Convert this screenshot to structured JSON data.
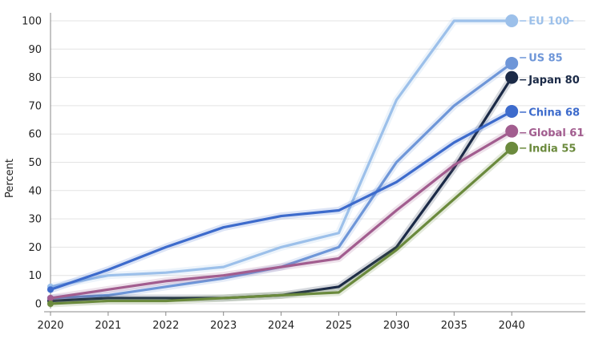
{
  "chart_data": {
    "type": "line",
    "ylabel": "Percent",
    "xlabel": "",
    "title": "",
    "categories": [
      "2020",
      "2021",
      "2022",
      "2023",
      "2024",
      "2025",
      "2030",
      "2035",
      "2040"
    ],
    "yticks": [
      "0",
      "10",
      "20",
      "30",
      "40",
      "50",
      "60",
      "70",
      "80",
      "90",
      "100"
    ],
    "ylim": [
      0,
      100
    ],
    "grid": "horizontal",
    "legend": "end-of-line labels",
    "series": [
      {
        "name": "EU",
        "end_label": "EU 100",
        "color": "#9cc0ea",
        "values": [
          6,
          10,
          11,
          13,
          20,
          25,
          72,
          100,
          100
        ]
      },
      {
        "name": "US",
        "end_label": "US 85",
        "color": "#6e96d8",
        "values": [
          2,
          3,
          6,
          9,
          13,
          20,
          50,
          70,
          85
        ]
      },
      {
        "name": "Japan",
        "end_label": "Japan 80",
        "color": "#1b2a47",
        "values": [
          1,
          2,
          2,
          2,
          3,
          6,
          20,
          48,
          80
        ]
      },
      {
        "name": "China",
        "end_label": "China 68",
        "color": "#3d6bcc",
        "values": [
          5,
          12,
          20,
          27,
          31,
          33,
          43,
          57,
          68
        ]
      },
      {
        "name": "Global",
        "end_label": "Global 61",
        "color": "#a25d8f",
        "values": [
          2,
          5,
          8,
          10,
          13,
          16,
          33,
          49,
          61
        ]
      },
      {
        "name": "India",
        "end_label": "India 55",
        "color": "#6b8a3d",
        "values": [
          0,
          1,
          1,
          2,
          3,
          4,
          19,
          37,
          55
        ]
      }
    ]
  }
}
